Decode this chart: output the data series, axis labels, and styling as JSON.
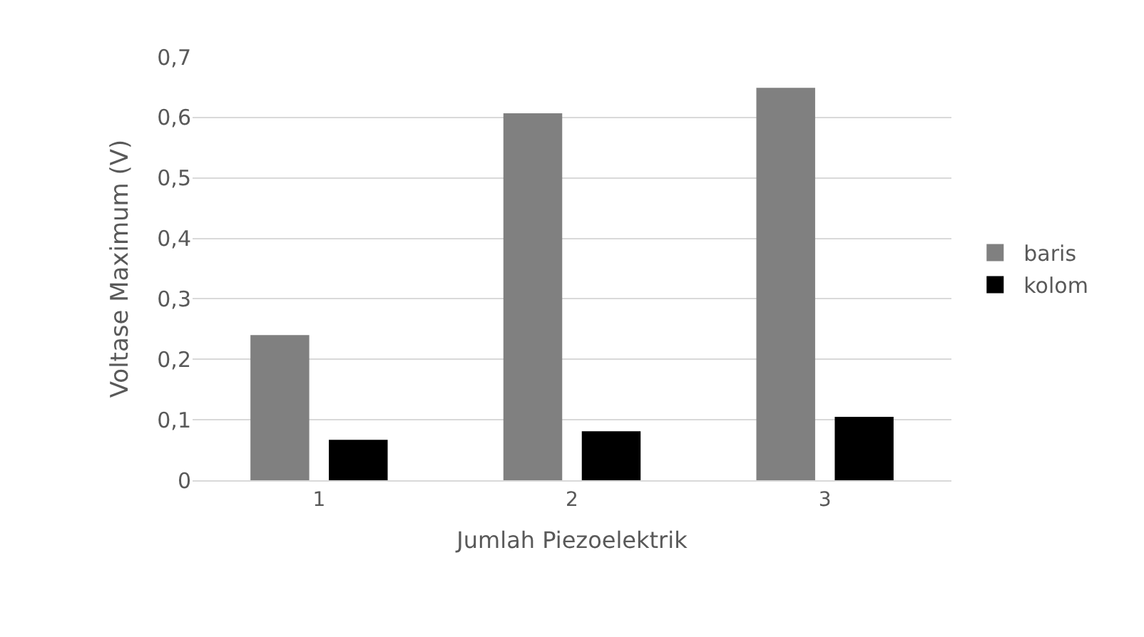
{
  "chart_data": {
    "type": "bar",
    "xlabel": "Jumlah Piezoelektrik",
    "ylabel": "Voltase Maximum (V)",
    "categories": [
      "1",
      "2",
      "3"
    ],
    "series": [
      {
        "name": "baris",
        "color": "#808080",
        "values": [
          0.24,
          0.607,
          0.649
        ]
      },
      {
        "name": "kolom",
        "color": "#000000",
        "values": [
          0.067,
          0.081,
          0.105
        ]
      }
    ],
    "ylim": [
      0,
      0.7
    ],
    "yticks": [
      {
        "value": 0,
        "label": "0"
      },
      {
        "value": 0.1,
        "label": "0,1"
      },
      {
        "value": 0.2,
        "label": "0,2"
      },
      {
        "value": 0.3,
        "label": "0,3"
      },
      {
        "value": 0.4,
        "label": "0,4"
      },
      {
        "value": 0.5,
        "label": "0,5"
      },
      {
        "value": 0.6,
        "label": "0,6"
      },
      {
        "value": 0.7,
        "label": "0,7"
      }
    ],
    "grid": "y",
    "legend": "right"
  }
}
